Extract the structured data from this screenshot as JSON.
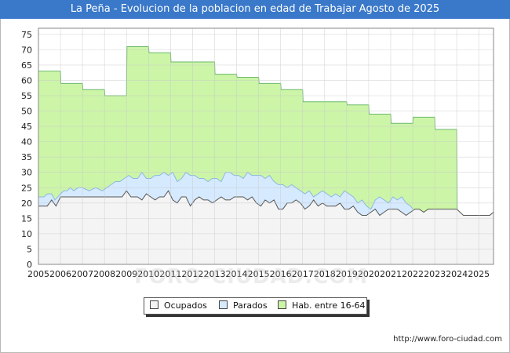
{
  "chart_data": {
    "type": "area",
    "title": "La Peña - Evolucion de la poblacion en edad de Trabajar Agosto de 2025",
    "xlabel": "",
    "ylabel": "",
    "x_range": [
      2005,
      2025.67
    ],
    "ylim": [
      0,
      77
    ],
    "y_ticks": [
      0,
      5,
      10,
      15,
      20,
      25,
      30,
      35,
      40,
      45,
      50,
      55,
      60,
      65,
      70,
      75
    ],
    "x_ticks": [
      2005,
      2006,
      2007,
      2008,
      2009,
      2010,
      2011,
      2012,
      2013,
      2014,
      2015,
      2016,
      2017,
      2018,
      2019,
      2020,
      2021,
      2022,
      2023,
      2024,
      2025
    ],
    "grid": true,
    "legend_position": "bottom-center",
    "series": [
      {
        "name": "Hab. entre 16-64",
        "fill": "#ccf5a8",
        "line": "#6ab86a",
        "points": [
          [
            2005,
            63
          ],
          [
            2006,
            63
          ],
          [
            2006.02,
            59
          ],
          [
            2007,
            59
          ],
          [
            2007.02,
            57
          ],
          [
            2008,
            57
          ],
          [
            2008.02,
            55
          ],
          [
            2009,
            55
          ],
          [
            2009.02,
            71
          ],
          [
            2010,
            71
          ],
          [
            2010.02,
            69
          ],
          [
            2011,
            69
          ],
          [
            2011.02,
            66
          ],
          [
            2012,
            66
          ],
          [
            2012.02,
            66
          ],
          [
            2013,
            66
          ],
          [
            2013.02,
            62
          ],
          [
            2014,
            62
          ],
          [
            2014.02,
            61
          ],
          [
            2015,
            61
          ],
          [
            2015.02,
            59
          ],
          [
            2016,
            59
          ],
          [
            2016.02,
            57
          ],
          [
            2017,
            57
          ],
          [
            2017.02,
            53
          ],
          [
            2018,
            53
          ],
          [
            2018.02,
            53
          ],
          [
            2019,
            53
          ],
          [
            2019.02,
            52
          ],
          [
            2020,
            52
          ],
          [
            2020.02,
            49
          ],
          [
            2021,
            49
          ],
          [
            2021.02,
            46
          ],
          [
            2022,
            46
          ],
          [
            2022.02,
            48
          ],
          [
            2023,
            48
          ],
          [
            2023.02,
            44
          ],
          [
            2024,
            44
          ],
          [
            2024.02,
            16
          ],
          [
            2025,
            16
          ],
          [
            2025.5,
            16
          ],
          [
            2025.67,
            17
          ]
        ]
      },
      {
        "name": "Parados",
        "fill": "#d6eaff",
        "line": "#8ab8e0",
        "points": [
          [
            2005,
            22
          ],
          [
            2005.25,
            22
          ],
          [
            2005.4,
            23
          ],
          [
            2005.6,
            23
          ],
          [
            2005.75,
            21
          ],
          [
            2006,
            23
          ],
          [
            2006.15,
            24
          ],
          [
            2006.3,
            24
          ],
          [
            2006.45,
            25
          ],
          [
            2006.6,
            24
          ],
          [
            2006.8,
            25
          ],
          [
            2007,
            25
          ],
          [
            2007.3,
            24
          ],
          [
            2007.6,
            25
          ],
          [
            2007.9,
            24
          ],
          [
            2008.1,
            25
          ],
          [
            2008.3,
            26
          ],
          [
            2008.5,
            27
          ],
          [
            2008.7,
            27
          ],
          [
            2008.9,
            28
          ],
          [
            2009.1,
            29
          ],
          [
            2009.3,
            28
          ],
          [
            2009.5,
            28
          ],
          [
            2009.7,
            30
          ],
          [
            2009.9,
            28
          ],
          [
            2010.1,
            28
          ],
          [
            2010.3,
            29
          ],
          [
            2010.5,
            29
          ],
          [
            2010.7,
            30
          ],
          [
            2010.9,
            29
          ],
          [
            2011.1,
            30
          ],
          [
            2011.3,
            27
          ],
          [
            2011.5,
            28
          ],
          [
            2011.7,
            30
          ],
          [
            2011.9,
            29
          ],
          [
            2012.1,
            29
          ],
          [
            2012.3,
            28
          ],
          [
            2012.5,
            28
          ],
          [
            2012.7,
            27
          ],
          [
            2012.9,
            28
          ],
          [
            2013.1,
            28
          ],
          [
            2013.3,
            27
          ],
          [
            2013.5,
            30
          ],
          [
            2013.7,
            30
          ],
          [
            2013.9,
            29
          ],
          [
            2014.1,
            29
          ],
          [
            2014.3,
            28
          ],
          [
            2014.5,
            30
          ],
          [
            2014.7,
            29
          ],
          [
            2014.9,
            29
          ],
          [
            2015.1,
            29
          ],
          [
            2015.3,
            28
          ],
          [
            2015.5,
            29
          ],
          [
            2015.7,
            27
          ],
          [
            2015.9,
            26
          ],
          [
            2016.1,
            26
          ],
          [
            2016.3,
            25
          ],
          [
            2016.5,
            26
          ],
          [
            2016.7,
            25
          ],
          [
            2016.9,
            24
          ],
          [
            2017.1,
            23
          ],
          [
            2017.3,
            24
          ],
          [
            2017.5,
            22
          ],
          [
            2017.7,
            23
          ],
          [
            2017.9,
            24
          ],
          [
            2018.1,
            23
          ],
          [
            2018.3,
            22
          ],
          [
            2018.5,
            23
          ],
          [
            2018.7,
            22
          ],
          [
            2018.9,
            24
          ],
          [
            2019.1,
            23
          ],
          [
            2019.3,
            22
          ],
          [
            2019.5,
            20
          ],
          [
            2019.7,
            21
          ],
          [
            2019.9,
            19
          ],
          [
            2020.1,
            18
          ],
          [
            2020.3,
            21
          ],
          [
            2020.5,
            22
          ],
          [
            2020.7,
            21
          ],
          [
            2020.9,
            20
          ],
          [
            2021.1,
            22
          ],
          [
            2021.3,
            21
          ],
          [
            2021.5,
            22
          ],
          [
            2021.7,
            20
          ],
          [
            2021.9,
            19
          ],
          [
            2022,
            18
          ]
        ]
      },
      {
        "name": "Ocupados",
        "fill": "#f4f4f4",
        "line": "#555555",
        "points": [
          [
            2005,
            19
          ],
          [
            2005.4,
            19
          ],
          [
            2005.6,
            21
          ],
          [
            2005.8,
            19
          ],
          [
            2006,
            22
          ],
          [
            2006.3,
            22
          ],
          [
            2006.6,
            22
          ],
          [
            2007,
            22
          ],
          [
            2007.5,
            22
          ],
          [
            2008,
            22
          ],
          [
            2008.5,
            22
          ],
          [
            2008.8,
            22
          ],
          [
            2009,
            24
          ],
          [
            2009.2,
            22
          ],
          [
            2009.5,
            22
          ],
          [
            2009.7,
            21
          ],
          [
            2009.9,
            23
          ],
          [
            2010.1,
            22
          ],
          [
            2010.3,
            21
          ],
          [
            2010.5,
            22
          ],
          [
            2010.7,
            22
          ],
          [
            2010.9,
            24
          ],
          [
            2011.1,
            21
          ],
          [
            2011.3,
            20
          ],
          [
            2011.5,
            22
          ],
          [
            2011.7,
            22
          ],
          [
            2011.9,
            19
          ],
          [
            2012.1,
            21
          ],
          [
            2012.3,
            22
          ],
          [
            2012.5,
            21
          ],
          [
            2012.7,
            21
          ],
          [
            2012.9,
            20
          ],
          [
            2013.1,
            21
          ],
          [
            2013.3,
            22
          ],
          [
            2013.5,
            21
          ],
          [
            2013.7,
            21
          ],
          [
            2013.9,
            22
          ],
          [
            2014.1,
            22
          ],
          [
            2014.3,
            22
          ],
          [
            2014.5,
            21
          ],
          [
            2014.7,
            22
          ],
          [
            2014.9,
            20
          ],
          [
            2015.1,
            19
          ],
          [
            2015.3,
            21
          ],
          [
            2015.5,
            20
          ],
          [
            2015.7,
            21
          ],
          [
            2015.9,
            18
          ],
          [
            2016.1,
            18
          ],
          [
            2016.3,
            20
          ],
          [
            2016.5,
            20
          ],
          [
            2016.7,
            21
          ],
          [
            2016.9,
            20
          ],
          [
            2017.1,
            18
          ],
          [
            2017.3,
            19
          ],
          [
            2017.5,
            21
          ],
          [
            2017.7,
            19
          ],
          [
            2017.9,
            20
          ],
          [
            2018.1,
            19
          ],
          [
            2018.3,
            19
          ],
          [
            2018.5,
            19
          ],
          [
            2018.7,
            20
          ],
          [
            2018.9,
            18
          ],
          [
            2019.1,
            18
          ],
          [
            2019.3,
            19
          ],
          [
            2019.5,
            17
          ],
          [
            2019.7,
            16
          ],
          [
            2019.9,
            16
          ],
          [
            2020.1,
            17
          ],
          [
            2020.3,
            18
          ],
          [
            2020.5,
            16
          ],
          [
            2020.7,
            17
          ],
          [
            2020.9,
            18
          ],
          [
            2021.1,
            18
          ],
          [
            2021.3,
            18
          ],
          [
            2021.5,
            17
          ],
          [
            2021.7,
            16
          ],
          [
            2021.9,
            17
          ],
          [
            2022.1,
            18
          ],
          [
            2022.3,
            18
          ],
          [
            2022.5,
            17
          ],
          [
            2022.7,
            18
          ],
          [
            2023,
            18
          ],
          [
            2023.5,
            18
          ],
          [
            2024,
            18
          ],
          [
            2024.3,
            16
          ],
          [
            2025,
            16
          ],
          [
            2025.5,
            16
          ],
          [
            2025.67,
            17
          ]
        ]
      }
    ],
    "legend_labels": {
      "ocupados": "Ocupados",
      "parados": "Parados",
      "hab": "Hab. entre 16-64"
    },
    "watermark": "FORO-CIUDAD.COM",
    "source": "http://www.foro-ciudad.com"
  },
  "colors": {
    "title_bar": "#3a78c9",
    "plot_background": "#ffffff",
    "grid": "#c8c8c8"
  }
}
